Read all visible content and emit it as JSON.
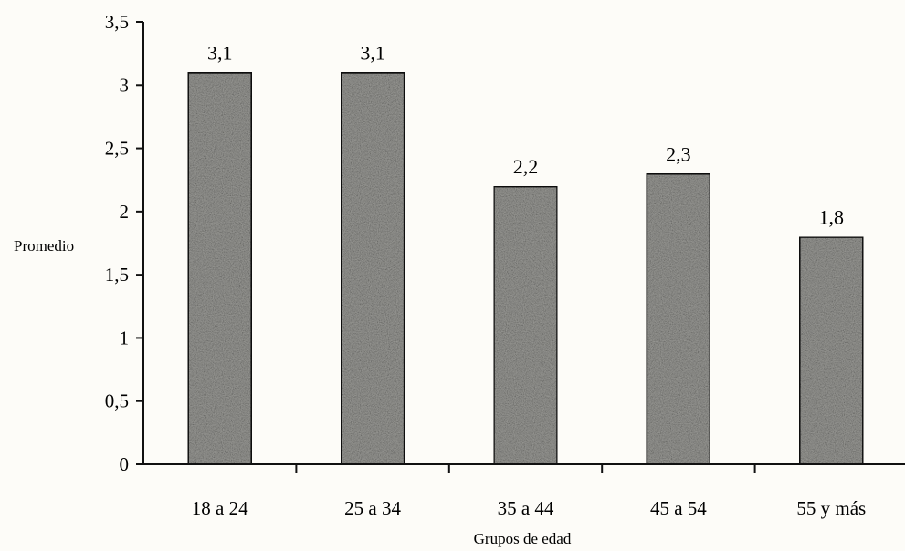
{
  "chart_data": {
    "type": "bar",
    "title": "",
    "xlabel": "Grupos de edad",
    "ylabel": "Promedio",
    "categories": [
      "18 a 24",
      "25 a 34",
      "35 a 44",
      "45 a 54",
      "55 y más"
    ],
    "values": [
      3.1,
      3.1,
      2.2,
      2.3,
      1.8
    ],
    "data_labels": [
      "3,1",
      "3,1",
      "2,2",
      "2,3",
      "1,8"
    ],
    "ylim": [
      0,
      3.5
    ],
    "y_ticks": [
      0,
      0.5,
      1,
      1.5,
      2,
      2.5,
      3,
      3.5
    ],
    "y_tick_labels": [
      "0",
      "0,5",
      "1",
      "1,5",
      "2",
      "2,5",
      "3",
      "3,5"
    ],
    "grid": false,
    "legend": "none",
    "bar_fill": "#9a9a96",
    "bar_stroke": "#111111"
  }
}
